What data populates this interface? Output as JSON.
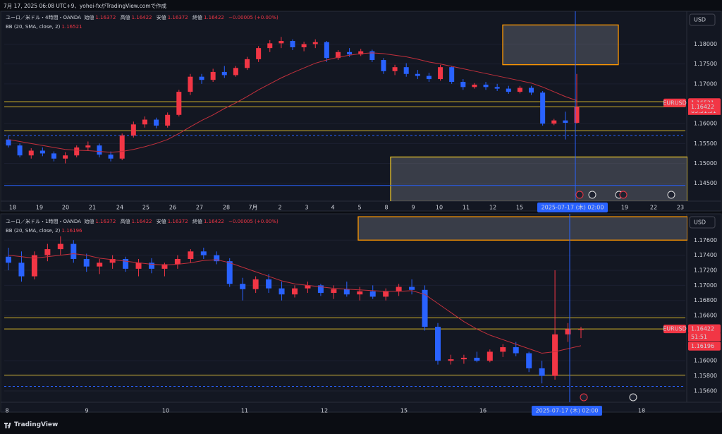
{
  "header": "7月 17, 2025 06:08 UTC+9、yohei-fxがTradingView.comで作成",
  "footer": "TradingView",
  "chart_data": [
    {
      "type": "candlestick",
      "title": "ユーロ／米ドル・4時間・OANDA",
      "legend": [
        {
          "label": "始値",
          "value": 1.16372
        },
        {
          "label": "高値",
          "value": 1.16422
        },
        {
          "label": "安値",
          "value": 1.16372
        },
        {
          "label": "終値",
          "value": 1.16422
        }
      ],
      "change": "−0.00005 (+0.00%)",
      "indicator": "BB (20, SMA, close, 2)",
      "indicator_value": 1.16521,
      "currency": "USD",
      "symbol": "EURUSD",
      "countdown": "03:51:51",
      "crosshair_time": "2025-07-17 (木)  02:00",
      "ylim": [
        1.1405,
        1.1879
      ],
      "yticks": [
        {
          "value": 1.18,
          "label": "1.18000"
        },
        {
          "value": 1.175,
          "label": "1.17500"
        },
        {
          "value": 1.17,
          "label": "1.17000"
        },
        {
          "value": 1.16,
          "label": "1.16000"
        },
        {
          "value": 1.155,
          "label": "1.15500"
        },
        {
          "value": 1.15,
          "label": "1.15000"
        },
        {
          "value": 1.145,
          "label": "1.14500"
        }
      ],
      "x_labels": [
        "18",
        "19",
        "20",
        "21",
        "24",
        "25",
        "26",
        "27",
        "28",
        "7月",
        "2",
        "3",
        "4",
        "5",
        "8",
        "9",
        "10",
        "11",
        "12",
        "15",
        "19",
        "22",
        "23"
      ],
      "price_labels": [
        {
          "value": 1.16521,
          "label": "1.16521",
          "color": "#f23645"
        },
        {
          "value": 1.16422,
          "label": "1.16422",
          "color": "#f23645"
        }
      ],
      "up_color": "#f23645",
      "down_color": "#2962ff",
      "bb_color": "#c2303c",
      "levels": [
        {
          "price": 1.1655,
          "color": "#d4b52a"
        },
        {
          "price": 1.16422,
          "color": "#d4b52a"
        },
        {
          "price": 1.1582,
          "color": "#d4b52a"
        },
        {
          "price": 1.157,
          "color": "#2962ff",
          "dashed": true
        },
        {
          "price": 1.14446,
          "color": "#2962ff"
        }
      ],
      "zones": [
        {
          "from": 1.17482,
          "to": 1.18482,
          "color": "#ff9800"
        },
        {
          "from": 1.1404,
          "to": 1.1516,
          "color": "#e6c229"
        }
      ],
      "ohlc": [
        [
          1.156,
          1.157,
          1.154,
          1.1545
        ],
        [
          1.1545,
          1.155,
          1.1515,
          1.152
        ],
        [
          1.152,
          1.1538,
          1.1512,
          1.1532
        ],
        [
          1.1532,
          1.154,
          1.1518,
          1.1525
        ],
        [
          1.1525,
          1.153,
          1.1505,
          1.1512
        ],
        [
          1.1512,
          1.1528,
          1.15,
          1.152
        ],
        [
          1.152,
          1.1545,
          1.1515,
          1.154
        ],
        [
          1.154,
          1.1555,
          1.1532,
          1.1545
        ],
        [
          1.1545,
          1.155,
          1.1515,
          1.1522
        ],
        [
          1.1522,
          1.153,
          1.1505,
          1.1512
        ],
        [
          1.1512,
          1.1575,
          1.1508,
          1.157
        ],
        [
          1.157,
          1.1605,
          1.1565,
          1.1598
        ],
        [
          1.1598,
          1.1618,
          1.159,
          1.161
        ],
        [
          1.161,
          1.1615,
          1.1588,
          1.1595
        ],
        [
          1.1595,
          1.1628,
          1.159,
          1.1622
        ],
        [
          1.1622,
          1.1685,
          1.1618,
          1.168
        ],
        [
          1.168,
          1.1725,
          1.1672,
          1.1718
        ],
        [
          1.1718,
          1.1725,
          1.17,
          1.171
        ],
        [
          1.171,
          1.1738,
          1.1705,
          1.173
        ],
        [
          1.173,
          1.1745,
          1.1715,
          1.1722
        ],
        [
          1.1722,
          1.1745,
          1.1718,
          1.174
        ],
        [
          1.174,
          1.1768,
          1.1735,
          1.1762
        ],
        [
          1.1762,
          1.1795,
          1.1755,
          1.179
        ],
        [
          1.179,
          1.181,
          1.178,
          1.1802
        ],
        [
          1.1802,
          1.1818,
          1.179,
          1.1808
        ],
        [
          1.1808,
          1.1812,
          1.1785,
          1.1792
        ],
        [
          1.1792,
          1.1806,
          1.1782,
          1.18
        ],
        [
          1.18,
          1.1812,
          1.179,
          1.1805
        ],
        [
          1.1805,
          1.1808,
          1.1755,
          1.1765
        ],
        [
          1.1765,
          1.1785,
          1.176,
          1.178
        ],
        [
          1.178,
          1.179,
          1.1768,
          1.1774
        ],
        [
          1.1774,
          1.1788,
          1.177,
          1.1782
        ],
        [
          1.1782,
          1.1786,
          1.1755,
          1.176
        ],
        [
          1.176,
          1.1765,
          1.1725,
          1.1732
        ],
        [
          1.1732,
          1.1748,
          1.1722,
          1.1742
        ],
        [
          1.1742,
          1.1752,
          1.1718,
          1.1725
        ],
        [
          1.1725,
          1.1735,
          1.1712,
          1.172
        ],
        [
          1.172,
          1.1728,
          1.1705,
          1.1712
        ],
        [
          1.1712,
          1.1748,
          1.1708,
          1.1742
        ],
        [
          1.1742,
          1.1745,
          1.17,
          1.1705
        ],
        [
          1.1705,
          1.1712,
          1.1685,
          1.1692
        ],
        [
          1.1692,
          1.1702,
          1.1688,
          1.1698
        ],
        [
          1.1698,
          1.1705,
          1.1685,
          1.1692
        ],
        [
          1.1692,
          1.17,
          1.1682,
          1.1688
        ],
        [
          1.1688,
          1.1695,
          1.1675,
          1.168
        ],
        [
          1.168,
          1.1695,
          1.1676,
          1.169
        ],
        [
          1.169,
          1.1695,
          1.1672,
          1.1678
        ],
        [
          1.1678,
          1.1682,
          1.1595,
          1.16
        ],
        [
          1.16,
          1.1612,
          1.1596,
          1.1608
        ],
        [
          1.1608,
          1.163,
          1.156,
          1.1602
        ],
        [
          1.1602,
          1.1725,
          1.16,
          1.1642
        ]
      ],
      "bb_basis": [
        1.156,
        1.1555,
        1.155,
        1.1545,
        1.154,
        1.1535,
        1.1533,
        1.1532,
        1.153,
        1.1528,
        1.153,
        1.1535,
        1.1542,
        1.155,
        1.156,
        1.1575,
        1.1592,
        1.1608,
        1.1622,
        1.1638,
        1.1652,
        1.1668,
        1.1685,
        1.17,
        1.1715,
        1.1728,
        1.174,
        1.1752,
        1.176,
        1.1767,
        1.1772,
        1.1776,
        1.1778,
        1.1776,
        1.1772,
        1.1768,
        1.1762,
        1.1755,
        1.175,
        1.1744,
        1.1738,
        1.1732,
        1.1726,
        1.172,
        1.1714,
        1.1708,
        1.1702,
        1.1692,
        1.168,
        1.1668,
        1.1658
      ]
    },
    {
      "type": "candlestick",
      "title": "ユーロ／米ドル・1時間・OANDA",
      "legend": [
        {
          "label": "始値",
          "value": 1.16372
        },
        {
          "label": "高値",
          "value": 1.16422
        },
        {
          "label": "安値",
          "value": 1.16372
        },
        {
          "label": "終値",
          "value": 1.16422
        }
      ],
      "change": "−0.00005 (+0.00%)",
      "indicator": "BB (20, SMA, close, 2)",
      "indicator_value": 1.16196,
      "currency": "USD",
      "symbol": "EURUSD",
      "countdown": "51:51",
      "crosshair_time": "2025-07-17 (木)  02:00",
      "ylim": [
        1.1545,
        1.1793
      ],
      "yticks": [
        {
          "value": 1.176,
          "label": "1.17600"
        },
        {
          "value": 1.174,
          "label": "1.17400"
        },
        {
          "value": 1.172,
          "label": "1.17200"
        },
        {
          "value": 1.17,
          "label": "1.17000"
        },
        {
          "value": 1.168,
          "label": "1.16800"
        },
        {
          "value": 1.166,
          "label": "1.16600"
        },
        {
          "value": 1.16,
          "label": "1.16000"
        },
        {
          "value": 1.158,
          "label": "1.15800"
        },
        {
          "value": 1.156,
          "label": "1.15600"
        }
      ],
      "x_labels": [
        "8",
        "9",
        "10",
        "11",
        "12",
        "15",
        "16",
        "18"
      ],
      "price_labels": [
        {
          "value": 1.16422,
          "label": "1.16422",
          "color": "#f23645"
        },
        {
          "value": 1.16196,
          "label": "1.16196",
          "color": "#f23645"
        }
      ],
      "up_color": "#f23645",
      "down_color": "#2962ff",
      "bb_color": "#c2303c",
      "levels": [
        {
          "price": 1.1657,
          "color": "#d4b52a"
        },
        {
          "price": 1.16422,
          "color": "#d4b52a"
        },
        {
          "price": 1.1581,
          "color": "#d4b52a"
        },
        {
          "price": 1.1566,
          "color": "#2962ff",
          "dashed": true
        }
      ],
      "zones": [
        {
          "from": 1.176,
          "to": 1.1791,
          "color": "#ff9800"
        }
      ],
      "ohlc": [
        [
          1.1738,
          1.175,
          1.172,
          1.173
        ],
        [
          1.173,
          1.1745,
          1.1705,
          1.1712
        ],
        [
          1.1712,
          1.1745,
          1.1708,
          1.174
        ],
        [
          1.174,
          1.1755,
          1.1732,
          1.1748
        ],
        [
          1.1748,
          1.1765,
          1.174,
          1.1755
        ],
        [
          1.1755,
          1.176,
          1.173,
          1.1735
        ],
        [
          1.1735,
          1.1742,
          1.1718,
          1.1725
        ],
        [
          1.1725,
          1.1735,
          1.1715,
          1.173
        ],
        [
          1.173,
          1.174,
          1.1722,
          1.1735
        ],
        [
          1.1735,
          1.1738,
          1.1718,
          1.1722
        ],
        [
          1.1722,
          1.1735,
          1.1712,
          1.173
        ],
        [
          1.173,
          1.1736,
          1.1716,
          1.1722
        ],
        [
          1.1722,
          1.173,
          1.1712,
          1.1728
        ],
        [
          1.1728,
          1.174,
          1.1722,
          1.1735
        ],
        [
          1.1735,
          1.1748,
          1.173,
          1.1745
        ],
        [
          1.1745,
          1.175,
          1.1735,
          1.174
        ],
        [
          1.174,
          1.1745,
          1.1728,
          1.1732
        ],
        [
          1.1732,
          1.1736,
          1.1698,
          1.1702
        ],
        [
          1.1702,
          1.171,
          1.168,
          1.1695
        ],
        [
          1.1695,
          1.1712,
          1.169,
          1.1708
        ],
        [
          1.1708,
          1.1715,
          1.169,
          1.1696
        ],
        [
          1.1696,
          1.1705,
          1.168,
          1.1688
        ],
        [
          1.1688,
          1.17,
          1.1684,
          1.1696
        ],
        [
          1.1696,
          1.1705,
          1.169,
          1.17
        ],
        [
          1.17,
          1.1702,
          1.1686,
          1.169
        ],
        [
          1.169,
          1.17,
          1.1682,
          1.1695
        ],
        [
          1.1695,
          1.1705,
          1.1685,
          1.1688
        ],
        [
          1.1688,
          1.1698,
          1.168,
          1.1692
        ],
        [
          1.1692,
          1.17,
          1.1682,
          1.1685
        ],
        [
          1.1685,
          1.1696,
          1.168,
          1.1692
        ],
        [
          1.1692,
          1.1702,
          1.1686,
          1.1698
        ],
        [
          1.1698,
          1.1708,
          1.1688,
          1.1694
        ],
        [
          1.1694,
          1.17,
          1.164,
          1.1645
        ],
        [
          1.1645,
          1.165,
          1.1595,
          1.16
        ],
        [
          1.16,
          1.1608,
          1.1595,
          1.1602
        ],
        [
          1.1602,
          1.1608,
          1.1596,
          1.1604
        ],
        [
          1.1604,
          1.1612,
          1.1598,
          1.16
        ],
        [
          1.16,
          1.1615,
          1.1598,
          1.1612
        ],
        [
          1.1612,
          1.1622,
          1.1605,
          1.1618
        ],
        [
          1.1618,
          1.1625,
          1.1606,
          1.161
        ],
        [
          1.161,
          1.1612,
          1.1585,
          1.159
        ],
        [
          1.159,
          1.16,
          1.157,
          1.158
        ],
        [
          1.158,
          1.172,
          1.1575,
          1.1635
        ],
        [
          1.1635,
          1.165,
          1.1625,
          1.1642
        ],
        [
          1.1642,
          1.1645,
          1.163,
          1.1642
        ]
      ],
      "bb_basis": [
        1.174,
        1.1738,
        1.1736,
        1.1738,
        1.174,
        1.1742,
        1.174,
        1.1736,
        1.1734,
        1.1732,
        1.173,
        1.1728,
        1.1727,
        1.1728,
        1.173,
        1.1733,
        1.1734,
        1.173,
        1.1724,
        1.1718,
        1.1712,
        1.1706,
        1.1702,
        1.17,
        1.1698,
        1.1696,
        1.1695,
        1.1694,
        1.1693,
        1.1692,
        1.1692,
        1.1693,
        1.1688,
        1.1676,
        1.1664,
        1.1652,
        1.1642,
        1.1634,
        1.1628,
        1.1622,
        1.1616,
        1.161,
        1.1612,
        1.1616,
        1.162
      ]
    }
  ]
}
